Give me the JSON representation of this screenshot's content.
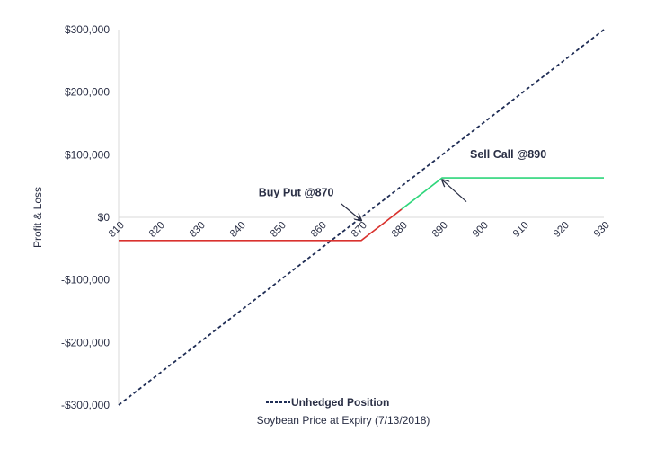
{
  "chart_data": {
    "type": "line",
    "xlabel": "Soybean Price at Expiry (7/13/2018)",
    "ylabel": "Profit & Loss",
    "xlim": [
      810,
      930
    ],
    "ylim": [
      -300000,
      300000
    ],
    "x_ticks": [
      "810",
      "820",
      "830",
      "840",
      "850",
      "860",
      "870",
      "880",
      "890",
      "900",
      "910",
      "920",
      "930"
    ],
    "y_ticks": [
      {
        "value": 300000,
        "label": "$300,000"
      },
      {
        "value": 200000,
        "label": "$200,000"
      },
      {
        "value": 100000,
        "label": "$100,000"
      },
      {
        "value": 0,
        "label": "$0"
      },
      {
        "value": -100000,
        "label": "-$100,000"
      },
      {
        "value": -200000,
        "label": "-$200,000"
      },
      {
        "value": -300000,
        "label": "-$300,000"
      }
    ],
    "grid": false,
    "legend_position": "bottom-center",
    "series": [
      {
        "name": "Unhedged Position",
        "style": "dashed",
        "color": "#1f2d55",
        "points": [
          [
            810,
            -300000
          ],
          [
            930,
            300000
          ]
        ]
      },
      {
        "style": "solid",
        "color": "#d9322e",
        "points": [
          [
            810,
            -37000
          ],
          [
            870,
            -37000
          ],
          [
            880,
            13000
          ]
        ]
      },
      {
        "style": "solid",
        "color": "#2fd67b",
        "points": [
          [
            880,
            13000
          ],
          [
            890,
            63000
          ],
          [
            930,
            63000
          ]
        ]
      }
    ],
    "annotations": [
      {
        "text": "Buy Put @870",
        "arrow_to": [
          870,
          -5000
        ],
        "arrow_from": [
          865,
          22000
        ]
      },
      {
        "text": "Sell Call @890",
        "arrow_to": [
          890,
          60000
        ],
        "arrow_from": [
          896,
          25000
        ]
      }
    ]
  }
}
